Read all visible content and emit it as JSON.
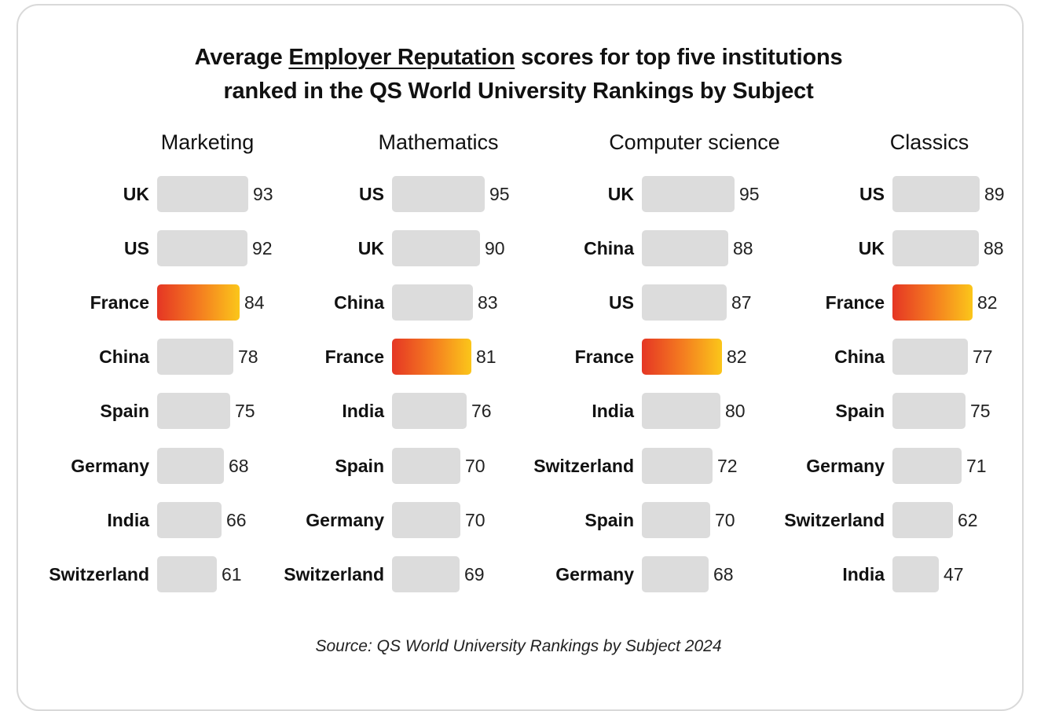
{
  "title_parts": {
    "before": "Average ",
    "underlined": "Employer Reputation",
    "after_line1": " scores for top five institutions",
    "line2": "ranked in the QS World University Rankings by Subject"
  },
  "source": "Source: QS World University Rankings by Subject 2024",
  "colors": {
    "bar_default": "#dcdcdc",
    "highlight_gradient_start": "#e53624",
    "highlight_gradient_end": "#fbc61a"
  },
  "chart_data": [
    {
      "type": "bar",
      "orientation": "horizontal",
      "title": "Marketing",
      "categories": [
        "UK",
        "US",
        "France",
        "China",
        "Spain",
        "Germany",
        "India",
        "Switzerland"
      ],
      "values": [
        93,
        92,
        84,
        78,
        75,
        68,
        66,
        61
      ],
      "highlight": "France"
    },
    {
      "type": "bar",
      "orientation": "horizontal",
      "title": "Mathematics",
      "categories": [
        "US",
        "UK",
        "China",
        "France",
        "India",
        "Spain",
        "Germany",
        "Switzerland"
      ],
      "values": [
        95,
        90,
        83,
        81,
        76,
        70,
        70,
        69
      ],
      "highlight": "France"
    },
    {
      "type": "bar",
      "orientation": "horizontal",
      "title": "Computer science",
      "categories": [
        "UK",
        "China",
        "US",
        "France",
        "India",
        "Switzerland",
        "Spain",
        "Germany"
      ],
      "values": [
        95,
        88,
        87,
        82,
        80,
        72,
        70,
        68
      ],
      "highlight": "France"
    },
    {
      "type": "bar",
      "orientation": "horizontal",
      "title": "Classics",
      "categories": [
        "US",
        "UK",
        "France",
        "China",
        "Spain",
        "Germany",
        "Switzerland",
        "India"
      ],
      "values": [
        89,
        88,
        82,
        77,
        75,
        71,
        62,
        47
      ],
      "highlight": "France"
    }
  ]
}
